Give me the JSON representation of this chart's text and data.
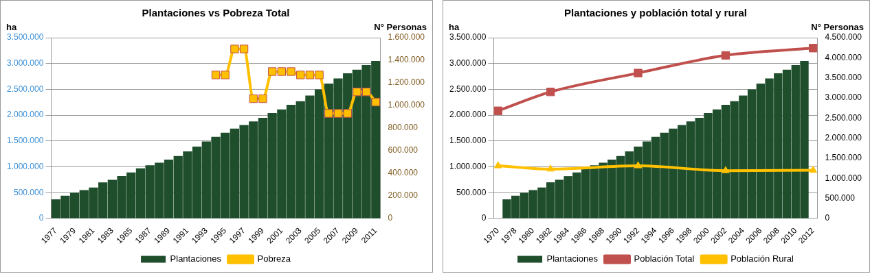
{
  "chart_data": [
    {
      "type": "bar",
      "title": "Plantaciones vs Pobreza Total",
      "ylabel": "ha",
      "y2label": "N° Personas",
      "categories": [
        "1977",
        null,
        "1979",
        null,
        "1981",
        null,
        "1983",
        null,
        "1985",
        null,
        "1987",
        null,
        "1989",
        null,
        "1991",
        null,
        "1993",
        null,
        "1995",
        null,
        "1997",
        null,
        "1999",
        null,
        "2001",
        null,
        "2003",
        null,
        "2005",
        null,
        "2007",
        null,
        "2009",
        null,
        "2011"
      ],
      "series": [
        {
          "name": "Plantaciones",
          "color": "#1f4e2c",
          "values": [
            370000,
            440000,
            500000,
            550000,
            600000,
            700000,
            750000,
            820000,
            890000,
            970000,
            1030000,
            1080000,
            1140000,
            1210000,
            1300000,
            1390000,
            1490000,
            1580000,
            1660000,
            1740000,
            1810000,
            1880000,
            1950000,
            2040000,
            2110000,
            2200000,
            2270000,
            2380000,
            2500000,
            2610000,
            2710000,
            2810000,
            2880000,
            2970000,
            3050000
          ]
        },
        {
          "name": "Pobreza",
          "type": "line",
          "axis": "y2",
          "color": "#ffc000",
          "values": [
            null,
            null,
            null,
            null,
            null,
            null,
            null,
            null,
            null,
            null,
            null,
            null,
            null,
            null,
            null,
            null,
            null,
            1270000,
            1270000,
            1500000,
            1500000,
            1060000,
            1060000,
            1300000,
            1300000,
            1300000,
            1270000,
            1270000,
            1270000,
            930000,
            930000,
            930000,
            1120000,
            1120000,
            1030000
          ]
        }
      ],
      "marker": "square",
      "ylim": [
        0,
        3500000
      ],
      "yticks": [
        {
          "value": 0,
          "label": "0"
        },
        {
          "value": 500000,
          "label": "500.000"
        },
        {
          "value": 1000000,
          "label": "1.000.000"
        },
        {
          "value": 1500000,
          "label": "1.500.000"
        },
        {
          "value": 2000000,
          "label": "2.000.000"
        },
        {
          "value": 2500000,
          "label": "2.500.000"
        },
        {
          "value": 3000000,
          "label": "3.000.000"
        },
        {
          "value": 3500000,
          "label": "3.500.000"
        }
      ],
      "y2lim": [
        0,
        1600000
      ],
      "y2ticks": [
        {
          "value": 0,
          "label": "0"
        },
        {
          "value": 200000,
          "label": "200.000"
        },
        {
          "value": 400000,
          "label": "400.000"
        },
        {
          "value": 600000,
          "label": "600.000"
        },
        {
          "value": 800000,
          "label": "800.000"
        },
        {
          "value": 1000000,
          "label": "1.000.000"
        },
        {
          "value": 1200000,
          "label": "1.200.000"
        },
        {
          "value": 1400000,
          "label": "1.400.000"
        },
        {
          "value": 1600000,
          "label": "1.600.000"
        }
      ],
      "grid": "y",
      "legend": "bottom"
    },
    {
      "type": "bar",
      "title": "Plantaciones y población total y rural",
      "ylabel": "ha",
      "y2label": "N° Personas",
      "categories": [
        "1970",
        null,
        "1978",
        null,
        "1980",
        null,
        "1982",
        null,
        "1984",
        null,
        "1986",
        null,
        "1988",
        null,
        "1990",
        null,
        "1992",
        null,
        "1994",
        null,
        "1996",
        null,
        "1998",
        null,
        "2000",
        null,
        "2002",
        null,
        "2004",
        null,
        "2006",
        null,
        "2008",
        null,
        "2010",
        null,
        "2012"
      ],
      "series": [
        {
          "name": "Plantaciones",
          "color": "#1f4e2c",
          "values": [
            null,
            370000,
            440000,
            500000,
            550000,
            600000,
            700000,
            750000,
            820000,
            890000,
            970000,
            1030000,
            1080000,
            1140000,
            1210000,
            1300000,
            1390000,
            1490000,
            1580000,
            1660000,
            1740000,
            1810000,
            1880000,
            1950000,
            2040000,
            2110000,
            2200000,
            2270000,
            2380000,
            2500000,
            2610000,
            2710000,
            2810000,
            2880000,
            2970000,
            3050000,
            null
          ]
        },
        {
          "name": "Población Total",
          "type": "line",
          "axis": "y2",
          "color": "#c0504d",
          "marker": "square",
          "values": [
            2680000,
            null,
            null,
            null,
            null,
            null,
            3150000,
            null,
            null,
            null,
            null,
            null,
            null,
            null,
            null,
            null,
            3620000,
            null,
            null,
            null,
            null,
            null,
            null,
            null,
            null,
            null,
            4060000,
            null,
            null,
            null,
            null,
            null,
            null,
            null,
            null,
            null,
            4240000
          ]
        },
        {
          "name": "Población Rural",
          "type": "line",
          "axis": "y2",
          "color": "#ffc000",
          "marker": "triangle",
          "values": [
            1310000,
            null,
            null,
            null,
            null,
            null,
            1230000,
            null,
            null,
            null,
            null,
            null,
            null,
            null,
            null,
            null,
            1310000,
            null,
            null,
            null,
            null,
            null,
            null,
            null,
            null,
            null,
            1190000,
            null,
            null,
            null,
            null,
            null,
            null,
            null,
            null,
            null,
            1200000
          ]
        }
      ],
      "ylim": [
        0,
        3500000
      ],
      "yticks": [
        {
          "value": 0,
          "label": "0"
        },
        {
          "value": 500000,
          "label": "500.000"
        },
        {
          "value": 1000000,
          "label": "1.000.000"
        },
        {
          "value": 1500000,
          "label": "1.500.000"
        },
        {
          "value": 2000000,
          "label": "2.000.000"
        },
        {
          "value": 2500000,
          "label": "2.500.000"
        },
        {
          "value": 3000000,
          "label": "3.000.000"
        },
        {
          "value": 3500000,
          "label": "3.500.000"
        }
      ],
      "y2lim": [
        0,
        4500000
      ],
      "y2ticks": [
        {
          "value": 0,
          "label": "0"
        },
        {
          "value": 500000,
          "label": "500.000"
        },
        {
          "value": 1000000,
          "label": "1.000.000"
        },
        {
          "value": 1500000,
          "label": "1.500.000"
        },
        {
          "value": 2000000,
          "label": "2.000.000"
        },
        {
          "value": 2500000,
          "label": "2.500.000"
        },
        {
          "value": 3000000,
          "label": "3.000.000"
        },
        {
          "value": 3500000,
          "label": "3.500.000"
        },
        {
          "value": 4000000,
          "label": "4.000.000"
        },
        {
          "value": 4500000,
          "label": "4.500.000"
        }
      ],
      "grid": "y",
      "legend": "bottom"
    }
  ]
}
